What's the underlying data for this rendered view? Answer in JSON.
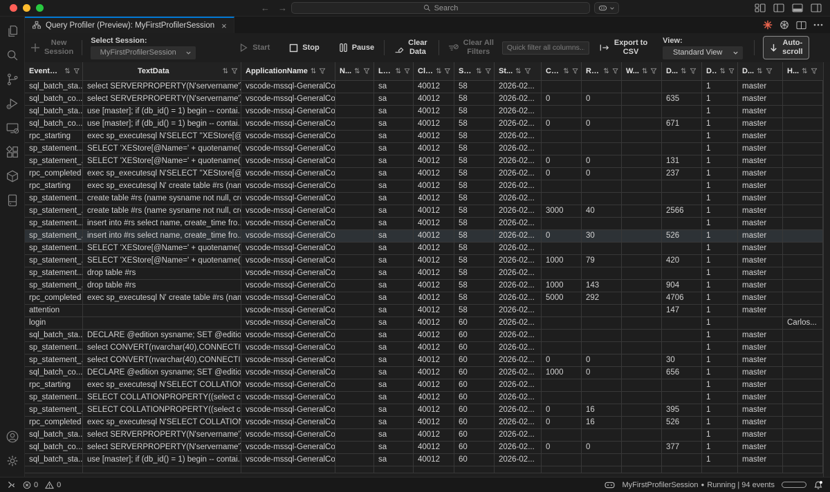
{
  "titlebar": {
    "search_placeholder": "Search",
    "back": "←",
    "forward": "→"
  },
  "tab": {
    "title": "Query Profiler (Preview): MyFirstProfilerSession",
    "close": "×"
  },
  "toolbar": {
    "new_session": "New\nSession",
    "select_session_label": "Select Session:",
    "selected_session": "MyFirstProfilerSession",
    "start": "Start",
    "stop": "Stop",
    "pause": "Pause",
    "clear_data": "Clear\nData",
    "clear_all_filters": "Clear All\nFilters",
    "quick_filter_placeholder": "Quick filter all columns...",
    "export_csv": "Export to\nCSV",
    "view_label": "View:",
    "view_value": "Standard View",
    "auto_scroll": "Auto-\nscroll"
  },
  "grid": {
    "columns": [
      "EventCl...",
      "TextData",
      "ApplicationName",
      "N...",
      "Lo...",
      "Cli...",
      "SP...",
      "St...",
      "CPU",
      "Re...",
      "W...",
      "D...",
      "D...",
      "D...",
      "H..."
    ],
    "highlighted_row_index": 12,
    "rows": [
      [
        "sql_batch_sta...",
        "select SERVERPROPERTY(N'servername')",
        "vscode-mssql-GeneralCo...",
        "",
        "sa",
        "40012",
        "58",
        "2026-02...",
        "",
        "",
        "",
        "",
        "1",
        "master",
        ""
      ],
      [
        "sql_batch_co...",
        "select SERVERPROPERTY(N'servername')",
        "vscode-mssql-GeneralCo...",
        "",
        "sa",
        "40012",
        "58",
        "2026-02...",
        "0",
        "0",
        "",
        "635",
        "1",
        "master",
        ""
      ],
      [
        "sql_batch_sta...",
        "use [master]; if (db_id() = 1) begin -- contai...",
        "vscode-mssql-GeneralCo...",
        "",
        "sa",
        "40012",
        "58",
        "2026-02...",
        "",
        "",
        "",
        "",
        "1",
        "master",
        ""
      ],
      [
        "sql_batch_co...",
        "use [master]; if (db_id() = 1) begin -- contai...",
        "vscode-mssql-GeneralCo...",
        "",
        "sa",
        "40012",
        "58",
        "2026-02...",
        "0",
        "0",
        "",
        "671",
        "1",
        "master",
        ""
      ],
      [
        "rpc_starting",
        "exec sp_executesql N'SELECT ''XEStore[@...",
        "vscode-mssql-GeneralCo...",
        "",
        "sa",
        "40012",
        "58",
        "2026-02...",
        "",
        "",
        "",
        "",
        "1",
        "master",
        ""
      ],
      [
        "sp_statement...",
        "SELECT 'XEStore[@Name=' + quotename(C...",
        "vscode-mssql-GeneralCo...",
        "",
        "sa",
        "40012",
        "58",
        "2026-02...",
        "",
        "",
        "",
        "",
        "1",
        "master",
        ""
      ],
      [
        "sp_statement_...",
        "SELECT 'XEStore[@Name=' + quotename(C...",
        "vscode-mssql-GeneralCo...",
        "",
        "sa",
        "40012",
        "58",
        "2026-02...",
        "0",
        "0",
        "",
        "131",
        "1",
        "master",
        ""
      ],
      [
        "rpc_completed",
        "exec sp_executesql N'SELECT ''XEStore[@...",
        "vscode-mssql-GeneralCo...",
        "",
        "sa",
        "40012",
        "58",
        "2026-02...",
        "0",
        "0",
        "",
        "237",
        "1",
        "master",
        ""
      ],
      [
        "rpc_starting",
        "exec sp_executesql N' create table #rs (nam...",
        "vscode-mssql-GeneralCo...",
        "",
        "sa",
        "40012",
        "58",
        "2026-02...",
        "",
        "",
        "",
        "",
        "1",
        "master",
        ""
      ],
      [
        "sp_statement...",
        "create table #rs (name sysname not null, cre...",
        "vscode-mssql-GeneralCo...",
        "",
        "sa",
        "40012",
        "58",
        "2026-02...",
        "",
        "",
        "",
        "",
        "1",
        "master",
        ""
      ],
      [
        "sp_statement_...",
        "create table #rs (name sysname not null, cre...",
        "vscode-mssql-GeneralCo...",
        "",
        "sa",
        "40012",
        "58",
        "2026-02...",
        "3000",
        "40",
        "",
        "2566",
        "1",
        "master",
        ""
      ],
      [
        "sp_statement...",
        "insert into #rs select name, create_time fro...",
        "vscode-mssql-GeneralCo...",
        "",
        "sa",
        "40012",
        "58",
        "2026-02...",
        "",
        "",
        "",
        "",
        "1",
        "master",
        ""
      ],
      [
        "sp_statement_...",
        "insert into #rs select name, create_time fro...",
        "vscode-mssql-GeneralCo...",
        "",
        "sa",
        "40012",
        "58",
        "2026-02...",
        "0",
        "30",
        "",
        "526",
        "1",
        "master",
        ""
      ],
      [
        "sp_statement...",
        "SELECT 'XEStore[@Name=' + quotename(C...",
        "vscode-mssql-GeneralCo...",
        "",
        "sa",
        "40012",
        "58",
        "2026-02...",
        "",
        "",
        "",
        "",
        "1",
        "master",
        ""
      ],
      [
        "sp_statement_...",
        "SELECT 'XEStore[@Name=' + quotename(C...",
        "vscode-mssql-GeneralCo...",
        "",
        "sa",
        "40012",
        "58",
        "2026-02...",
        "1000",
        "79",
        "",
        "420",
        "1",
        "master",
        ""
      ],
      [
        "sp_statement...",
        "drop table #rs",
        "vscode-mssql-GeneralCo...",
        "",
        "sa",
        "40012",
        "58",
        "2026-02...",
        "",
        "",
        "",
        "",
        "1",
        "master",
        ""
      ],
      [
        "sp_statement_...",
        "drop table #rs",
        "vscode-mssql-GeneralCo...",
        "",
        "sa",
        "40012",
        "58",
        "2026-02...",
        "1000",
        "143",
        "",
        "904",
        "1",
        "master",
        ""
      ],
      [
        "rpc_completed",
        "exec sp_executesql N' create table #rs (nam...",
        "vscode-mssql-GeneralCo...",
        "",
        "sa",
        "40012",
        "58",
        "2026-02...",
        "5000",
        "292",
        "",
        "4706",
        "1",
        "master",
        ""
      ],
      [
        "attention",
        "",
        "vscode-mssql-GeneralCo...",
        "",
        "sa",
        "40012",
        "58",
        "2026-02...",
        "",
        "",
        "",
        "147",
        "1",
        "master",
        ""
      ],
      [
        "login",
        "",
        "vscode-mssql-GeneralCo...",
        "",
        "sa",
        "40012",
        "60",
        "2026-02...",
        "",
        "",
        "",
        "",
        "1",
        "",
        "Carlos..."
      ],
      [
        "sql_batch_sta...",
        "DECLARE @edition sysname; SET @edition ...",
        "vscode-mssql-GeneralCo...",
        "",
        "sa",
        "40012",
        "60",
        "2026-02...",
        "",
        "",
        "",
        "",
        "1",
        "master",
        ""
      ],
      [
        "sp_statement...",
        "select CONVERT(nvarchar(40),CONNECTIO...",
        "vscode-mssql-GeneralCo...",
        "",
        "sa",
        "40012",
        "60",
        "2026-02...",
        "",
        "",
        "",
        "",
        "1",
        "master",
        ""
      ],
      [
        "sp_statement_...",
        "select CONVERT(nvarchar(40),CONNECTIO...",
        "vscode-mssql-GeneralCo...",
        "",
        "sa",
        "40012",
        "60",
        "2026-02...",
        "0",
        "0",
        "",
        "30",
        "1",
        "master",
        ""
      ],
      [
        "sql_batch_co...",
        "DECLARE @edition sysname; SET @edition ...",
        "vscode-mssql-GeneralCo...",
        "",
        "sa",
        "40012",
        "60",
        "2026-02...",
        "1000",
        "0",
        "",
        "656",
        "1",
        "master",
        ""
      ],
      [
        "rpc_starting",
        "exec sp_executesql N'SELECT COLLATIONP...",
        "vscode-mssql-GeneralCo...",
        "",
        "sa",
        "40012",
        "60",
        "2026-02...",
        "",
        "",
        "",
        "",
        "1",
        "master",
        ""
      ],
      [
        "sp_statement...",
        "SELECT COLLATIONPROPERTY((select coll...",
        "vscode-mssql-GeneralCo...",
        "",
        "sa",
        "40012",
        "60",
        "2026-02...",
        "",
        "",
        "",
        "",
        "1",
        "master",
        ""
      ],
      [
        "sp_statement_...",
        "SELECT COLLATIONPROPERTY((select coll...",
        "vscode-mssql-GeneralCo...",
        "",
        "sa",
        "40012",
        "60",
        "2026-02...",
        "0",
        "16",
        "",
        "395",
        "1",
        "master",
        ""
      ],
      [
        "rpc_completed",
        "exec sp_executesql N'SELECT COLLATIONP...",
        "vscode-mssql-GeneralCo...",
        "",
        "sa",
        "40012",
        "60",
        "2026-02...",
        "0",
        "16",
        "",
        "526",
        "1",
        "master",
        ""
      ],
      [
        "sql_batch_sta...",
        "select SERVERPROPERTY(N'servername')",
        "vscode-mssql-GeneralCo...",
        "",
        "sa",
        "40012",
        "60",
        "2026-02...",
        "",
        "",
        "",
        "",
        "1",
        "master",
        ""
      ],
      [
        "sql_batch_co...",
        "select SERVERPROPERTY(N'servername')",
        "vscode-mssql-GeneralCo...",
        "",
        "sa",
        "40012",
        "60",
        "2026-02...",
        "0",
        "0",
        "",
        "377",
        "1",
        "master",
        ""
      ],
      [
        "sql_batch_sta...",
        "use [master]; if (db_id() = 1) begin -- contai...",
        "vscode-mssql-GeneralCo...",
        "",
        "sa",
        "40012",
        "60",
        "2026-02...",
        "",
        "",
        "",
        "",
        "1",
        "master",
        ""
      ]
    ]
  },
  "statusbar": {
    "errors": "0",
    "warnings": "0",
    "session_name": "MyFirstProfilerSession",
    "bullet": "●",
    "run_status": "Running | 94 events"
  },
  "colors": {
    "accent": "#0078d4",
    "starburst": "#e8634d"
  }
}
